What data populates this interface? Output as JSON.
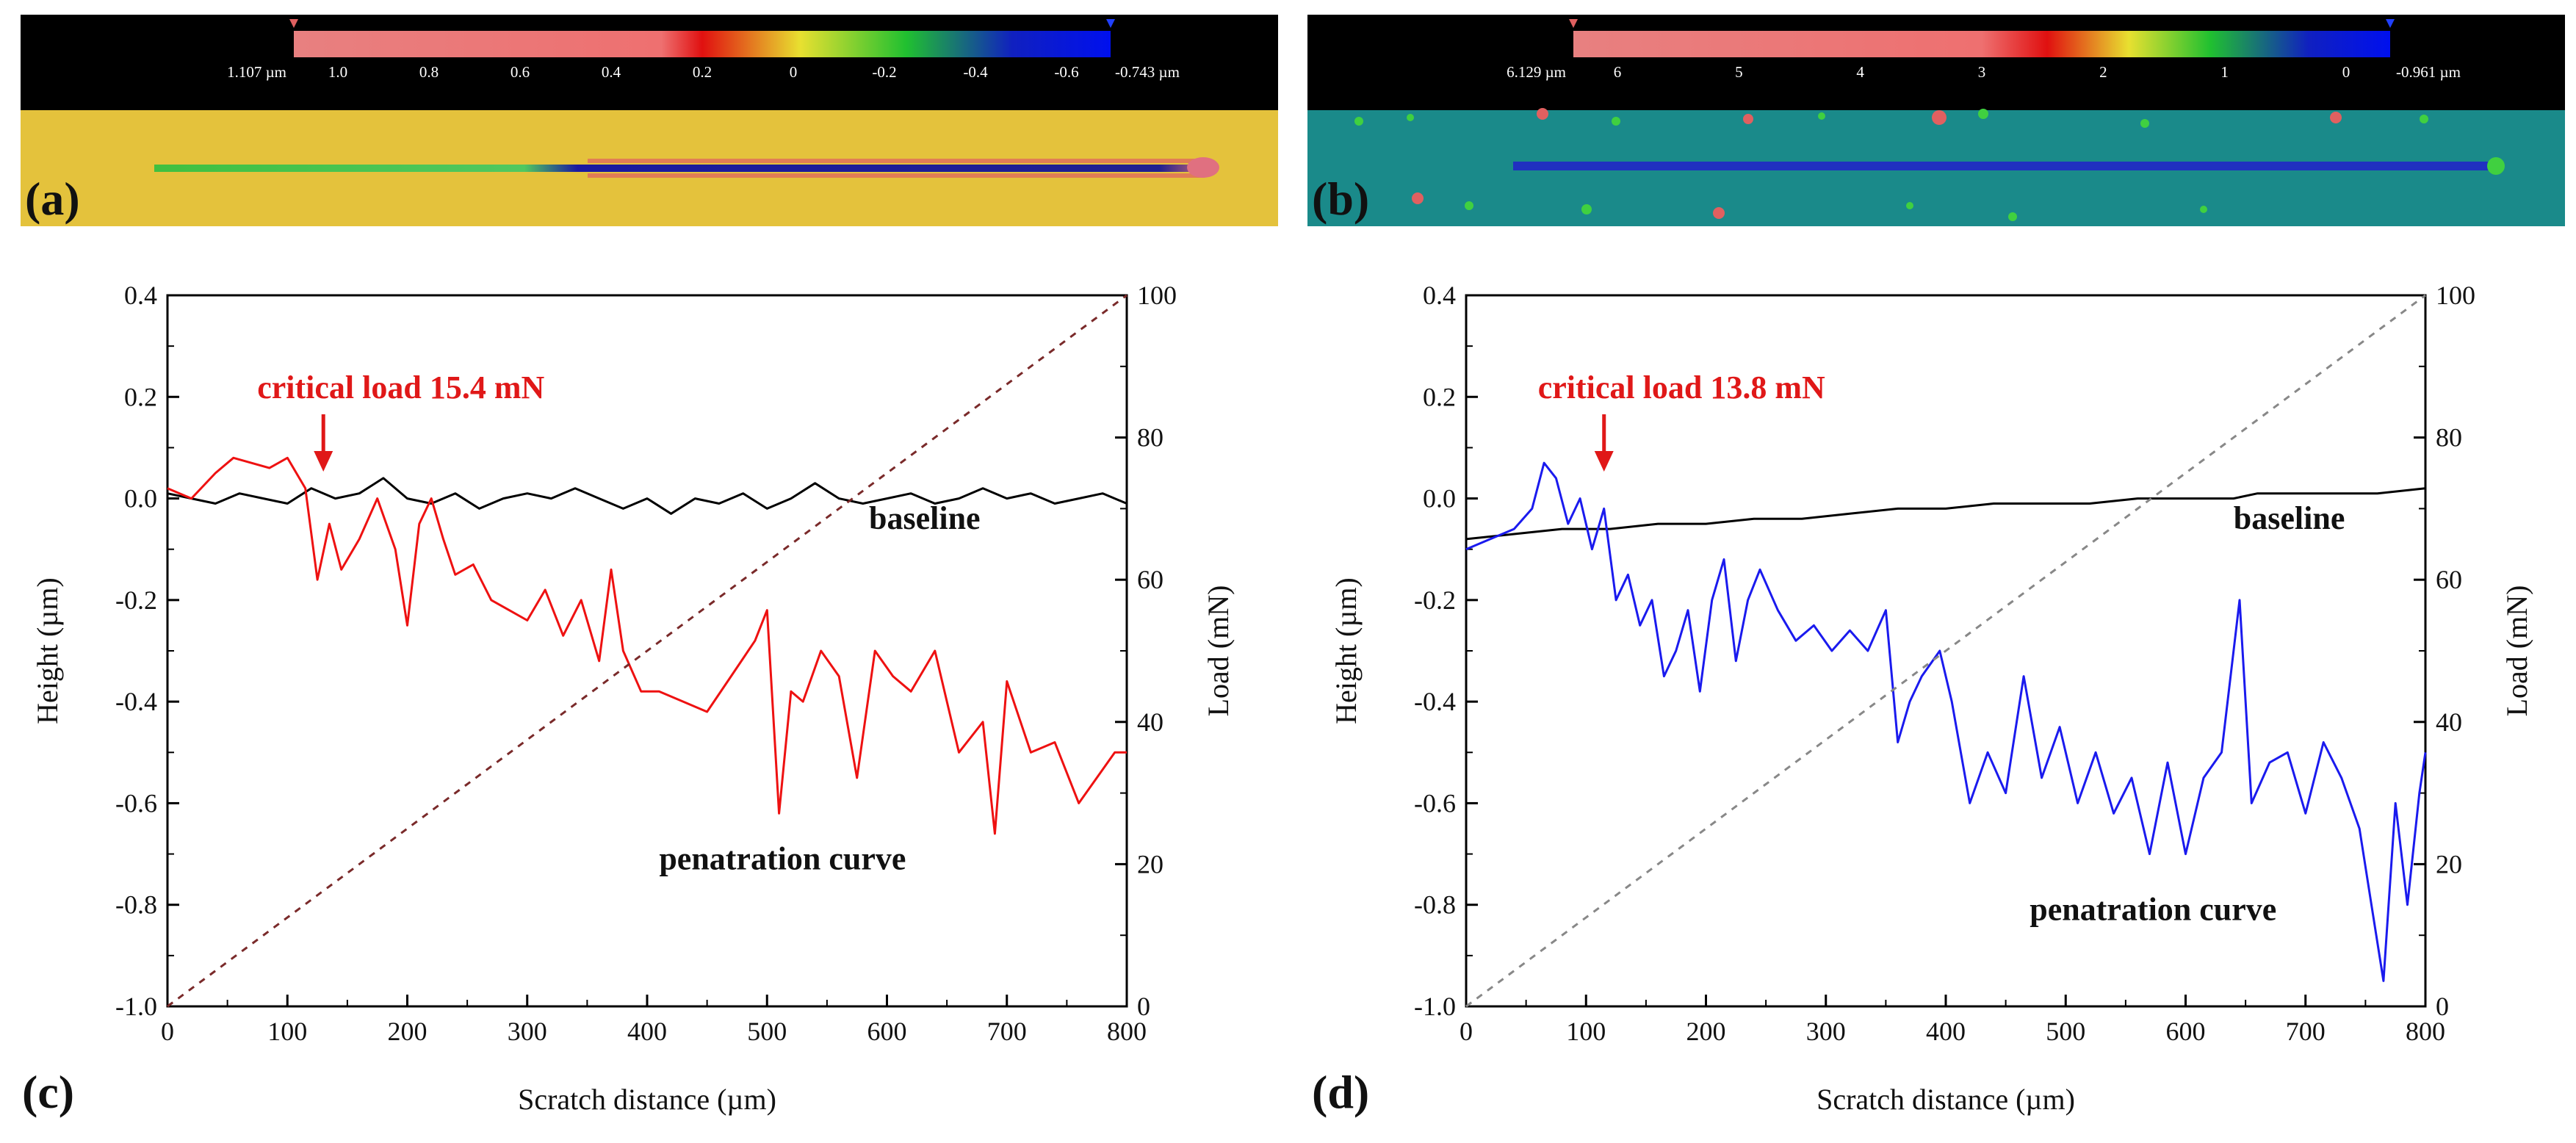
{
  "panels": [
    {
      "letter": "(a)",
      "scale": {
        "max_label": "1.107 µm",
        "min_label": "-0.743 µm",
        "ticks": [
          "1.0",
          "0.8",
          "0.6",
          "0.4",
          "0.2",
          "0",
          "-0.2",
          "-0.4",
          "-0.6"
        ]
      }
    },
    {
      "letter": "(b)",
      "scale": {
        "max_label": "6.129 µm",
        "min_label": "-0.961 µm",
        "ticks": [
          "6",
          "5",
          "4",
          "3",
          "2",
          "1",
          "0"
        ]
      }
    }
  ],
  "chart_data": [
    {
      "type": "line",
      "panel_letter": "(c)",
      "xlabel": "Scratch distance (µm)",
      "ylabel": "Height (µm)",
      "y2label": "Load (mN)",
      "xlim": [
        0,
        800
      ],
      "ylim": [
        -1.0,
        0.4
      ],
      "y2lim": [
        0,
        100
      ],
      "x_ticks": [
        "0",
        "100",
        "200",
        "300",
        "400",
        "500",
        "600",
        "700",
        "800"
      ],
      "y_ticks": [
        "0.4",
        "0.2",
        "0.0",
        "-0.2",
        "-0.4",
        "-0.6",
        "-0.8",
        "-1.0"
      ],
      "y2_ticks": [
        "100",
        "80",
        "60",
        "40",
        "20",
        "0"
      ],
      "annotations": {
        "critical_load": "critical load 15.4 mN",
        "baseline": "baseline",
        "penetration": "penatration curve"
      },
      "critical_x": 130,
      "colors": {
        "penetration": "#ee1111",
        "baseline": "#000000",
        "load": "#7a2a2a"
      },
      "series": [
        {
          "name": "baseline",
          "x": [
            0,
            20,
            40,
            60,
            80,
            100,
            120,
            140,
            160,
            180,
            200,
            220,
            240,
            260,
            280,
            300,
            320,
            340,
            360,
            380,
            400,
            420,
            440,
            460,
            480,
            500,
            520,
            540,
            560,
            580,
            600,
            620,
            640,
            660,
            680,
            700,
            720,
            740,
            760,
            780,
            800
          ],
          "y": [
            0.01,
            0.0,
            -0.01,
            0.01,
            0.0,
            -0.01,
            0.02,
            0.0,
            0.01,
            0.04,
            0.0,
            -0.01,
            0.01,
            -0.02,
            0.0,
            0.01,
            0.0,
            0.02,
            0.0,
            -0.02,
            0.0,
            -0.03,
            0.0,
            -0.01,
            0.01,
            -0.02,
            0.0,
            0.03,
            0.0,
            -0.01,
            0.0,
            0.01,
            -0.01,
            0.0,
            0.02,
            0.0,
            0.01,
            -0.01,
            0.0,
            0.01,
            -0.01
          ]
        },
        {
          "name": "penetration curve",
          "x": [
            0,
            20,
            40,
            55,
            70,
            85,
            100,
            115,
            125,
            135,
            145,
            160,
            175,
            190,
            200,
            210,
            220,
            230,
            240,
            255,
            270,
            285,
            300,
            315,
            330,
            345,
            360,
            370,
            380,
            395,
            410,
            430,
            450,
            470,
            490,
            500,
            510,
            520,
            530,
            545,
            560,
            575,
            590,
            605,
            620,
            640,
            660,
            680,
            690,
            700,
            720,
            740,
            760,
            775,
            790,
            800
          ],
          "y": [
            0.02,
            0.0,
            0.05,
            0.08,
            0.07,
            0.06,
            0.08,
            0.02,
            -0.16,
            -0.05,
            -0.14,
            -0.08,
            0.0,
            -0.1,
            -0.25,
            -0.05,
            0.0,
            -0.08,
            -0.15,
            -0.13,
            -0.2,
            -0.22,
            -0.24,
            -0.18,
            -0.27,
            -0.2,
            -0.32,
            -0.14,
            -0.3,
            -0.38,
            -0.38,
            -0.4,
            -0.42,
            -0.35,
            -0.28,
            -0.22,
            -0.62,
            -0.38,
            -0.4,
            -0.3,
            -0.35,
            -0.55,
            -0.3,
            -0.35,
            -0.38,
            -0.3,
            -0.5,
            -0.44,
            -0.66,
            -0.36,
            -0.5,
            -0.48,
            -0.6,
            -0.55,
            -0.5,
            -0.5
          ]
        },
        {
          "name": "load",
          "axis": "y2",
          "x": [
            0,
            800
          ],
          "y": [
            0,
            100
          ]
        }
      ]
    },
    {
      "type": "line",
      "panel_letter": "(d)",
      "xlabel": "Scratch distance (µm)",
      "ylabel": "Height (µm)",
      "y2label": "Load (mN)",
      "xlim": [
        0,
        800
      ],
      "ylim": [
        -1.0,
        0.4
      ],
      "y2lim": [
        0,
        100
      ],
      "x_ticks": [
        "0",
        "100",
        "200",
        "300",
        "400",
        "500",
        "600",
        "700",
        "800"
      ],
      "y_ticks": [
        "0.4",
        "0.2",
        "0.0",
        "-0.2",
        "-0.4",
        "-0.6",
        "-0.8",
        "-1.0"
      ],
      "y2_ticks": [
        "100",
        "80",
        "60",
        "40",
        "20",
        "0"
      ],
      "annotations": {
        "critical_load": "critical load 13.8 mN",
        "baseline": "baseline",
        "penetration": "penatration curve"
      },
      "critical_x": 115,
      "colors": {
        "penetration": "#1a1aee",
        "baseline": "#000000",
        "load": "#888888"
      },
      "series": [
        {
          "name": "baseline",
          "x": [
            0,
            40,
            80,
            120,
            160,
            200,
            240,
            280,
            320,
            360,
            400,
            440,
            480,
            520,
            560,
            600,
            640,
            660,
            680,
            720,
            760,
            800
          ],
          "y": [
            -0.08,
            -0.07,
            -0.06,
            -0.06,
            -0.05,
            -0.05,
            -0.04,
            -0.04,
            -0.03,
            -0.02,
            -0.02,
            -0.01,
            -0.01,
            -0.01,
            0.0,
            0.0,
            0.0,
            0.01,
            0.01,
            0.01,
            0.01,
            0.02
          ]
        },
        {
          "name": "penetration curve",
          "x": [
            0,
            20,
            40,
            55,
            65,
            75,
            85,
            95,
            105,
            115,
            125,
            135,
            145,
            155,
            165,
            175,
            185,
            195,
            205,
            215,
            225,
            235,
            245,
            260,
            275,
            290,
            305,
            320,
            335,
            350,
            360,
            370,
            380,
            395,
            405,
            420,
            435,
            450,
            465,
            480,
            495,
            510,
            525,
            540,
            555,
            570,
            585,
            600,
            615,
            630,
            645,
            655,
            670,
            685,
            700,
            715,
            730,
            745,
            755,
            765,
            775,
            785,
            795,
            800
          ],
          "y": [
            -0.1,
            -0.08,
            -0.06,
            -0.02,
            0.07,
            0.04,
            -0.05,
            0.0,
            -0.1,
            -0.02,
            -0.2,
            -0.15,
            -0.25,
            -0.2,
            -0.35,
            -0.3,
            -0.22,
            -0.38,
            -0.2,
            -0.12,
            -0.32,
            -0.2,
            -0.14,
            -0.22,
            -0.28,
            -0.25,
            -0.3,
            -0.26,
            -0.3,
            -0.22,
            -0.48,
            -0.4,
            -0.35,
            -0.3,
            -0.4,
            -0.6,
            -0.5,
            -0.58,
            -0.35,
            -0.55,
            -0.45,
            -0.6,
            -0.5,
            -0.62,
            -0.55,
            -0.7,
            -0.52,
            -0.7,
            -0.55,
            -0.5,
            -0.2,
            -0.6,
            -0.52,
            -0.5,
            -0.62,
            -0.48,
            -0.55,
            -0.65,
            -0.8,
            -0.95,
            -0.6,
            -0.8,
            -0.58,
            -0.5
          ]
        },
        {
          "name": "load",
          "axis": "y2",
          "x": [
            0,
            800
          ],
          "y": [
            0,
            100
          ]
        }
      ]
    }
  ]
}
